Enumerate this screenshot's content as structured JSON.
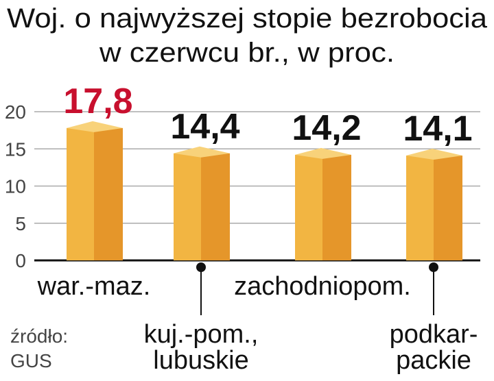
{
  "chart_data": {
    "type": "bar",
    "title": [
      "Woj. o najwyższej stopie bezrobocia",
      "w czerwcu br., w proc."
    ],
    "categories": [
      [
        "war.-maz."
      ],
      [
        "kuj.-pom.,",
        "lubuskie"
      ],
      [
        "zachodniopom."
      ],
      [
        "podkar-",
        "packie"
      ]
    ],
    "values": [
      17.8,
      14.4,
      14.2,
      14.1
    ],
    "value_labels": [
      "17,8",
      "14,4",
      "14,2",
      "14,1"
    ],
    "value_label_colors": [
      "#c8102e",
      "#111111",
      "#111111",
      "#111111"
    ],
    "color": "#f2b542",
    "side_color": "#e5962a",
    "ylim": [
      0,
      20
    ],
    "yticks": [
      0,
      5,
      10,
      15,
      20
    ],
    "grid": true,
    "source": [
      "źródło:",
      "GUS"
    ]
  }
}
